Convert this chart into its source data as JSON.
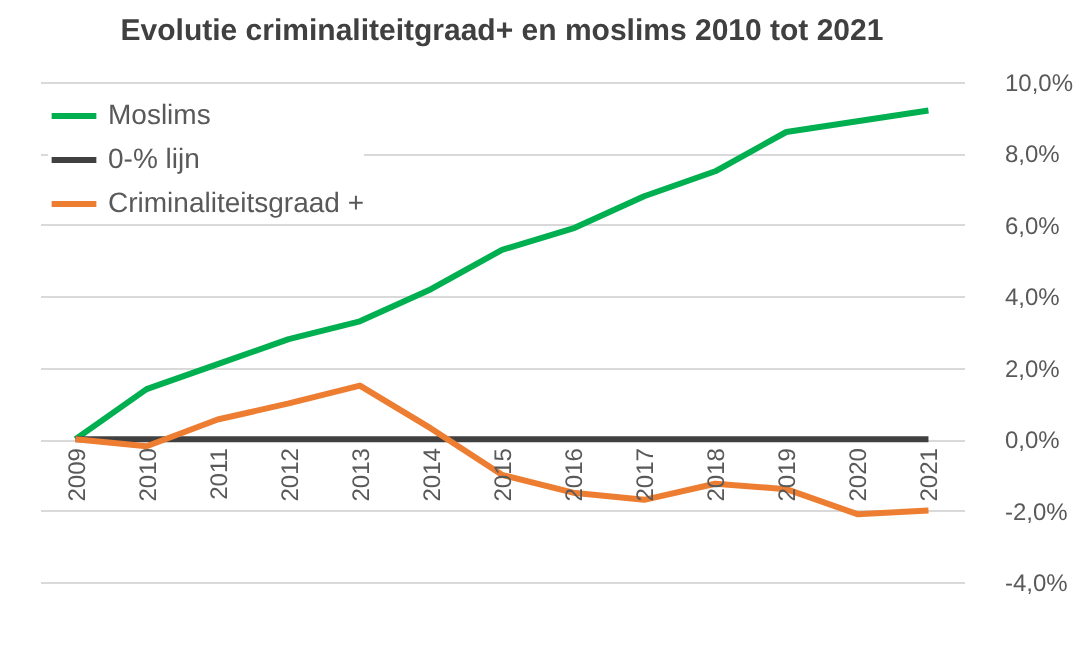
{
  "chart_data": {
    "type": "line",
    "title": "Evolutie criminaliteitgraad+  en moslims 2010 tot 2021",
    "categories": [
      "2009",
      "2010",
      "2011",
      "2012",
      "2013",
      "2014",
      "2015",
      "2016",
      "2017",
      "2018",
      "2019",
      "2020",
      "2021"
    ],
    "series": [
      {
        "name": "Moslims",
        "color": "#00b050",
        "values": [
          0,
          1.4,
          2.1,
          2.8,
          3.3,
          4.2,
          5.3,
          5.9,
          6.8,
          7.5,
          8.6,
          8.9,
          9.2
        ]
      },
      {
        "name": "0-% lijn",
        "color": "#404040",
        "values": [
          0,
          0,
          0,
          0,
          0,
          0,
          0,
          0,
          0,
          0,
          0,
          0,
          0
        ]
      },
      {
        "name": "Criminaliteitsgraad +",
        "color": "#ed7d31",
        "values": [
          0,
          -0.2,
          0.55,
          1.0,
          1.5,
          0.3,
          -1.0,
          -1.5,
          -1.7,
          -1.25,
          -1.4,
          -2.1,
          -2.0
        ]
      }
    ],
    "ylim": [
      -4,
      10
    ],
    "yticks": [
      {
        "value": -4,
        "label": "-4,0%"
      },
      {
        "value": -2,
        "label": "-2,0%"
      },
      {
        "value": 0,
        "label": "0,0%"
      },
      {
        "value": 2,
        "label": "2,0%"
      },
      {
        "value": 4,
        "label": "4,0%"
      },
      {
        "value": 6,
        "label": "6,0%"
      },
      {
        "value": 8,
        "label": "8,0%"
      },
      {
        "value": 10,
        "label": "10,0%"
      }
    ],
    "grid": "y",
    "legend": "top left",
    "marker": "none",
    "line_style": "solid"
  }
}
